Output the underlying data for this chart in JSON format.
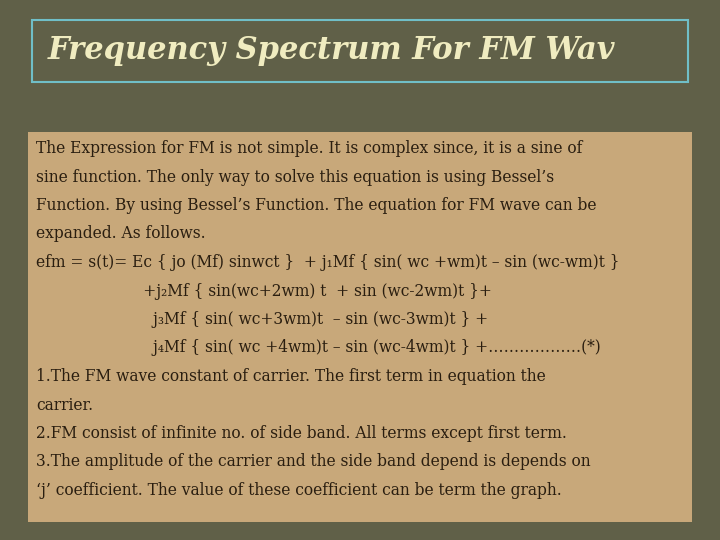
{
  "title": "Frequency Spectrum For FM Wav",
  "title_color": "#f0ecc0",
  "title_box_edge_color": "#70bfc8",
  "title_fontsize": 22,
  "title_font": "serif",
  "background_outer": "#606048",
  "background_inner": "#c8a87a",
  "text_color": "#2a1e10",
  "body_fontsize": 11.2,
  "body_font": "serif",
  "lines": [
    "The Expression for FM is not simple. It is complex since, it is a sine of",
    "sine function. The only way to solve this equation is using Bessel’s",
    "Function. By using Bessel’s Function. The equation for FM wave can be",
    "expanded. As follows.",
    "efm = s(t)= Ec { jo (Mf) sinwct }  + j₁Mf { sin( wc +wm)t – sin (wc-wm)t }",
    "                      +j₂Mf { sin(wc+2wm) t  + sin (wc-2wm)t }+",
    "                        j₃Mf { sin( wc+3wm)t  – sin (wc-3wm)t } +",
    "                        j₄Mf { sin( wc +4wm)t – sin (wc-4wm)t } +………………(*)",
    "1.The FM wave constant of carrier. The first term in equation the",
    "carrier.",
    "2.FM consist of infinite no. of side band. All terms except first term.",
    "3.The amplitude of the carrier and the side band depend is depends on",
    "‘j’ coefficient. The value of these coefficient can be term the graph."
  ]
}
